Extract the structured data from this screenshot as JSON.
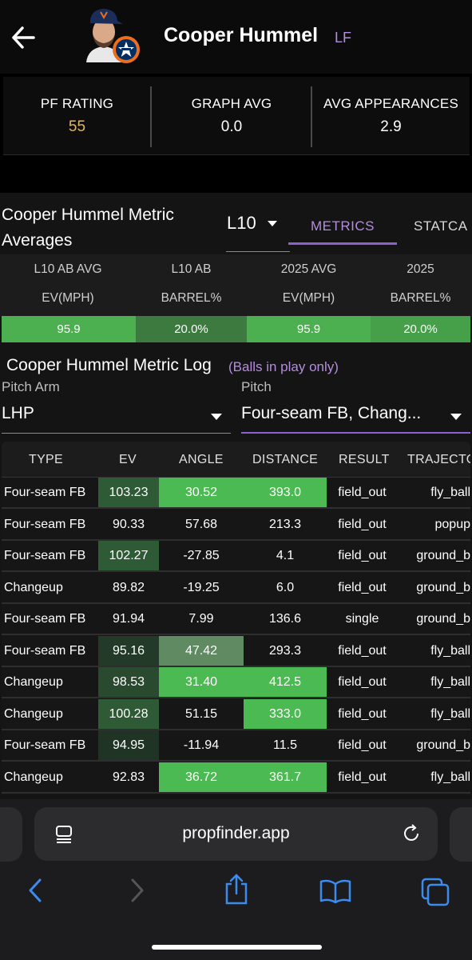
{
  "header": {
    "player_name": "Cooper Hummel",
    "position": "LF"
  },
  "summary_stats": [
    {
      "label": "PF RATING",
      "value": "55",
      "color": "#e3b65a"
    },
    {
      "label": "GRAPH AVG",
      "value": "0.0"
    },
    {
      "label": "AVG APPEARANCES",
      "value": "2.9"
    }
  ],
  "metrics_section": {
    "title": "Cooper Hummel Metric Averages",
    "window_select": "L10",
    "tabs": [
      {
        "label": "METRICS",
        "active": true
      },
      {
        "label": "STATCA",
        "active": false
      }
    ],
    "columns": [
      {
        "line1": "L10 AB AVG",
        "line2": "EV(MPH)",
        "value": "95.9",
        "color": "#4caf50"
      },
      {
        "line1": "L10 AB",
        "line2": "BARREL%",
        "value": "20.0%",
        "color": "#3c7a3f"
      },
      {
        "line1": "2025 AVG",
        "line2": "EV(MPH)",
        "value": "95.9",
        "color": "#4caf50"
      },
      {
        "line1": "2025",
        "line2": "BARREL%",
        "value": "20.0%",
        "color": "#45a049"
      }
    ]
  },
  "log_section": {
    "title": "Cooper Hummel Metric Log",
    "subtitle": "(Balls in play only)",
    "filters": {
      "pitch_arm_label": "Pitch Arm",
      "pitch_arm_value": "LHP",
      "pitch_label": "Pitch",
      "pitch_value": "Four-seam FB, Chang..."
    },
    "table": {
      "headers": [
        "TYPE",
        "EV",
        "ANGLE",
        "DISTANCE",
        "RESULT",
        "TRAJECTO"
      ],
      "rows": [
        {
          "type": "Four-seam FB",
          "ev": "103.23",
          "angle": "30.52",
          "distance": "393.0",
          "result": "field_out",
          "trajectory": "fly_ball",
          "ev_color": "#2f5a36",
          "angle_color": "#4cba52",
          "distance_color": "#4cba52"
        },
        {
          "type": "Four-seam FB",
          "ev": "90.33",
          "angle": "57.68",
          "distance": "213.3",
          "result": "field_out",
          "trajectory": "popup",
          "ev_color": "",
          "angle_color": "",
          "distance_color": ""
        },
        {
          "type": "Four-seam FB",
          "ev": "102.27",
          "angle": "-27.85",
          "distance": "4.1",
          "result": "field_out",
          "trajectory": "ground_b",
          "ev_color": "#2f5a36",
          "angle_color": "",
          "distance_color": ""
        },
        {
          "type": "Changeup",
          "ev": "89.82",
          "angle": "-19.25",
          "distance": "6.0",
          "result": "field_out",
          "trajectory": "ground_b",
          "ev_color": "",
          "angle_color": "",
          "distance_color": ""
        },
        {
          "type": "Four-seam FB",
          "ev": "91.94",
          "angle": "7.99",
          "distance": "136.6",
          "result": "single",
          "trajectory": "ground_b",
          "ev_color": "",
          "angle_color": "",
          "distance_color": ""
        },
        {
          "type": "Four-seam FB",
          "ev": "95.16",
          "angle": "47.42",
          "distance": "293.3",
          "result": "field_out",
          "trajectory": "fly_ball",
          "ev_color": "#223a27",
          "angle_color": "#5f8a62",
          "distance_color": ""
        },
        {
          "type": "Changeup",
          "ev": "98.53",
          "angle": "31.40",
          "distance": "412.5",
          "result": "field_out",
          "trajectory": "fly_ball",
          "ev_color": "#2a4a30",
          "angle_color": "#4cba52",
          "distance_color": "#4cba52"
        },
        {
          "type": "Changeup",
          "ev": "100.28",
          "angle": "51.15",
          "distance": "333.0",
          "result": "field_out",
          "trajectory": "fly_ball",
          "ev_color": "#2f5a36",
          "angle_color": "",
          "distance_color": "#4cba52"
        },
        {
          "type": "Four-seam FB",
          "ev": "94.95",
          "angle": "-11.94",
          "distance": "11.5",
          "result": "field_out",
          "trajectory": "ground_b",
          "ev_color": "#1f3424",
          "angle_color": "",
          "distance_color": ""
        },
        {
          "type": "Changeup",
          "ev": "92.83",
          "angle": "36.72",
          "distance": "361.7",
          "result": "field_out",
          "trajectory": "fly_ball",
          "ev_color": "",
          "angle_color": "#4cba52",
          "distance_color": "#4cba52"
        }
      ]
    }
  },
  "browser": {
    "url": "propfinder.app"
  }
}
